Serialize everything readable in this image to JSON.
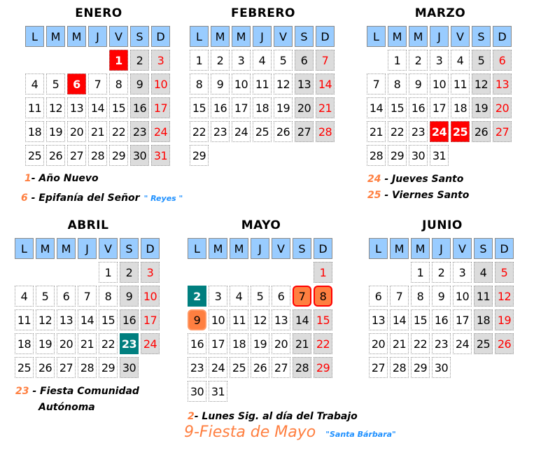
{
  "weekdays": [
    "L",
    "M",
    "M",
    "J",
    "V",
    "S",
    "D"
  ],
  "colors": {
    "header": "#99ccff",
    "holiday": "#ff0000",
    "teal": "#007f7f",
    "orange": "#ff7f40",
    "weekend": "#dcdcdc",
    "note_blue": "#1e90ff"
  },
  "months": [
    {
      "name": "ENERO",
      "offset": 4,
      "days": 31,
      "special": {
        "1": "hol",
        "6": "hol"
      }
    },
    {
      "name": "FEBRERO",
      "offset": 0,
      "days": 29,
      "special": {}
    },
    {
      "name": "MARZO",
      "offset": 1,
      "days": 31,
      "special": {
        "24": "hol",
        "25": "hol"
      }
    },
    {
      "name": "ABRIL",
      "offset": 4,
      "days": 30,
      "special": {
        "23": "teal"
      }
    },
    {
      "name": "MAYO",
      "offset": 6,
      "days": 31,
      "special": {
        "2": "teal",
        "7": "orange",
        "8": "orange",
        "9": "orange2"
      }
    },
    {
      "name": "JUNIO",
      "offset": 2,
      "days": 30,
      "special": {}
    }
  ],
  "legends": {
    "enero_1_num": "1",
    "enero_1_text": "- Año Nuevo",
    "enero_6_num": "6",
    "enero_6_text": " - Epifanía del Señor",
    "enero_6_note": "\" Reyes \"",
    "marzo_24_num": "24",
    "marzo_24_text": " - Jueves Santo",
    "marzo_25_num": "25",
    "marzo_25_text": " - Viernes Santo",
    "abril_23_num": "23",
    "abril_23_text": " - Fiesta Comunidad",
    "abril_23_text2": "Autónoma",
    "mayo_2_num": "2",
    "mayo_2_text": "- Lunes Sig. al día del Trabajo",
    "mayo_9_text": "9-Fiesta de Mayo",
    "mayo_9_note": "\"Santa Bárbara\""
  }
}
